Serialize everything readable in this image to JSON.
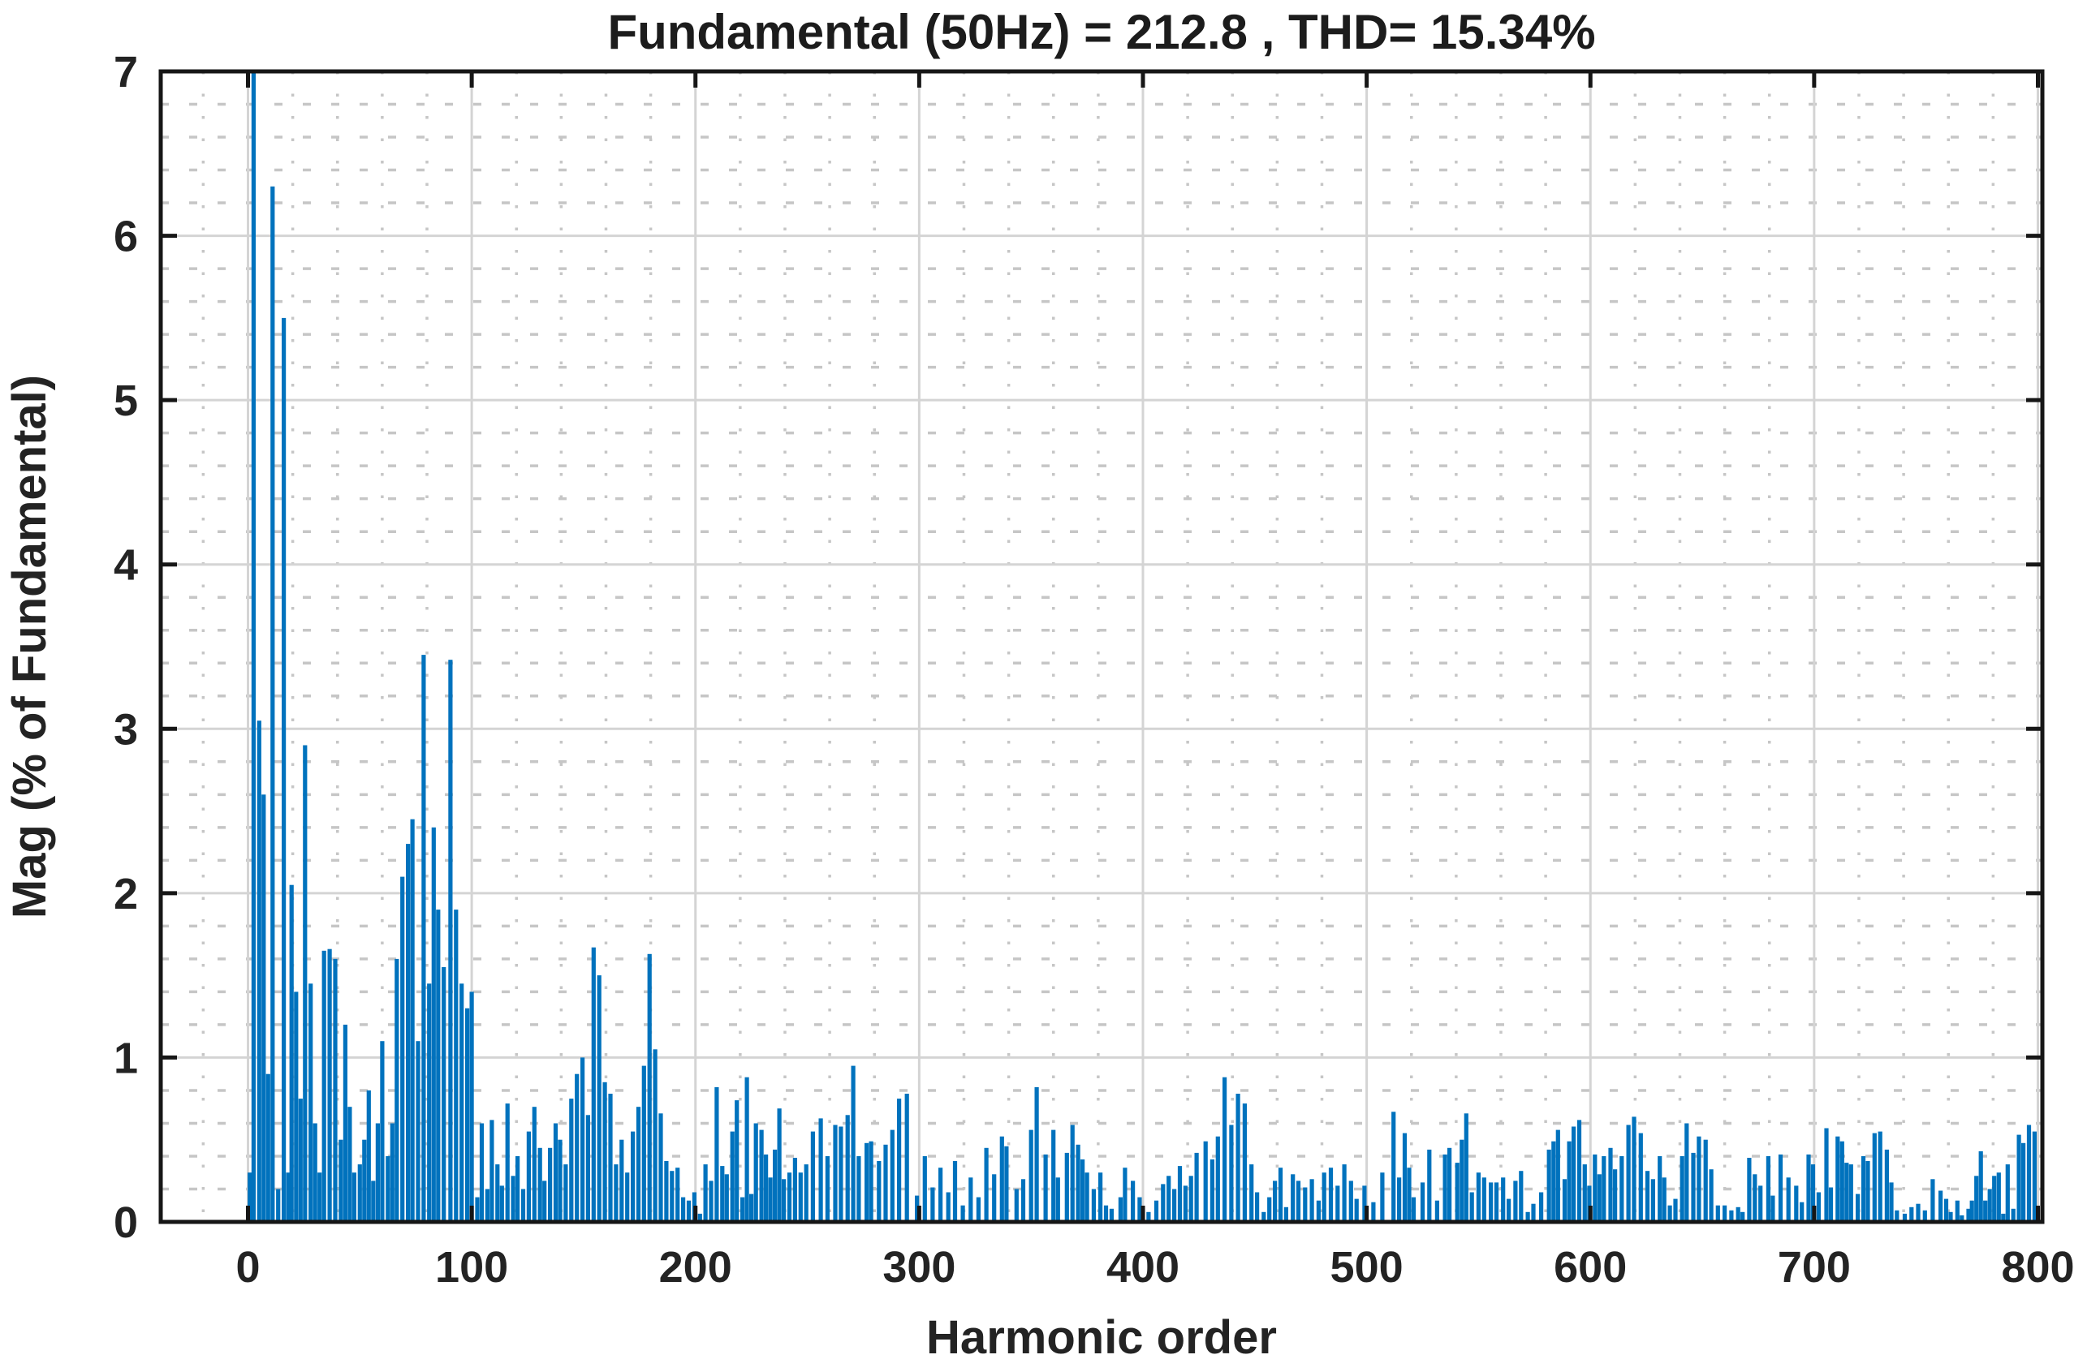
{
  "chart_data": {
    "type": "bar",
    "title": "Fundamental (50Hz) = 212.8 , THD= 15.34%",
    "xlabel": "Harmonic order",
    "ylabel": "Mag (% of Fundamental)",
    "fundamental_hz": 50,
    "fundamental_peak": 212.8,
    "thd_percent": 15.34,
    "xlim": [
      -39,
      802
    ],
    "ylim": [
      0,
      7
    ],
    "x_ticks": [
      0,
      100,
      200,
      300,
      400,
      500,
      600,
      700,
      800
    ],
    "y_ticks": [
      0,
      1,
      2,
      3,
      4,
      5,
      6,
      7
    ],
    "x_minor_step": 20,
    "y_minor_step": 0.2,
    "grid": "major-solid-plus-minor-dotted",
    "legend": "none",
    "bar_color": "#0072BD",
    "axis_color": "#161616",
    "major_grid_color": "#d4d4d4",
    "minor_grid_color": "#c6c6c6",
    "note": "fundamental-region bar clipped at ylim max 7",
    "bars": [
      [
        0.8,
        0.3
      ],
      [
        2.5,
        7
      ],
      [
        5,
        3.05
      ],
      [
        7,
        2.6
      ],
      [
        9,
        0.9
      ],
      [
        11,
        6.3
      ],
      [
        13.5,
        0.2
      ],
      [
        16,
        5.5
      ],
      [
        18,
        0.3
      ],
      [
        19.5,
        2.05
      ],
      [
        21.5,
        1.4
      ],
      [
        23.5,
        0.75
      ],
      [
        25.5,
        2.9
      ],
      [
        28,
        1.45
      ],
      [
        30,
        0.6
      ],
      [
        32,
        0.3
      ],
      [
        34,
        1.65
      ],
      [
        36.5,
        1.66
      ],
      [
        39,
        1.6
      ],
      [
        41.5,
        0.5
      ],
      [
        43.5,
        1.2
      ],
      [
        45.5,
        0.7
      ],
      [
        47.5,
        0.3
      ],
      [
        50,
        0.35
      ],
      [
        52,
        0.5
      ],
      [
        54,
        0.8
      ],
      [
        56,
        0.25
      ],
      [
        58,
        0.6
      ],
      [
        60,
        1.1
      ],
      [
        62.5,
        0.4
      ],
      [
        64.5,
        0.6
      ],
      [
        66.5,
        1.6
      ],
      [
        69,
        2.1
      ],
      [
        71.5,
        2.3
      ],
      [
        73.5,
        2.45
      ],
      [
        76,
        1.1
      ],
      [
        78.5,
        3.45
      ],
      [
        81,
        1.45
      ],
      [
        83,
        2.4
      ],
      [
        85,
        1.9
      ],
      [
        87.5,
        1.55
      ],
      [
        90.5,
        3.42
      ],
      [
        93,
        1.9
      ],
      [
        95.5,
        1.45
      ],
      [
        98,
        1.3
      ],
      [
        100,
        1.4
      ],
      [
        102.5,
        0.15
      ],
      [
        104.5,
        0.6
      ],
      [
        107,
        0.2
      ],
      [
        109,
        0.62
      ],
      [
        111.5,
        0.35
      ],
      [
        113.5,
        0.22
      ],
      [
        116,
        0.72
      ],
      [
        118.5,
        0.28
      ],
      [
        120.5,
        0.4
      ],
      [
        123,
        0.2
      ],
      [
        125.5,
        0.55
      ],
      [
        128,
        0.7
      ],
      [
        130.5,
        0.45
      ],
      [
        132.5,
        0.25
      ],
      [
        135,
        0.45
      ],
      [
        137.5,
        0.6
      ],
      [
        139.5,
        0.5
      ],
      [
        142,
        0.35
      ],
      [
        144.5,
        0.75
      ],
      [
        147,
        0.9
      ],
      [
        149.5,
        1.0
      ],
      [
        152,
        0.65
      ],
      [
        154.5,
        1.67
      ],
      [
        157,
        1.5
      ],
      [
        159.5,
        0.85
      ],
      [
        162,
        0.78
      ],
      [
        164.5,
        0.35
      ],
      [
        167,
        0.5
      ],
      [
        169.5,
        0.3
      ],
      [
        172,
        0.55
      ],
      [
        174.5,
        0.7
      ],
      [
        177,
        0.95
      ],
      [
        179.5,
        1.63
      ],
      [
        182,
        1.05
      ],
      [
        184.5,
        0.66
      ],
      [
        187,
        0.37
      ],
      [
        189.5,
        0.31
      ],
      [
        192,
        0.33
      ],
      [
        194.5,
        0.15
      ],
      [
        197,
        0.13
      ],
      [
        199.5,
        0.18
      ],
      [
        202,
        0.05
      ],
      [
        204.5,
        0.35
      ],
      [
        207,
        0.25
      ],
      [
        209.5,
        0.82
      ],
      [
        212,
        0.34
      ],
      [
        214,
        0.29
      ],
      [
        216.5,
        0.55
      ],
      [
        218.5,
        0.74
      ],
      [
        221,
        0.15
      ],
      [
        223,
        0.88
      ],
      [
        225,
        0.17
      ],
      [
        227,
        0.6
      ],
      [
        229.5,
        0.56
      ],
      [
        231.5,
        0.41
      ],
      [
        233.5,
        0.27
      ],
      [
        235.5,
        0.44
      ],
      [
        237.5,
        0.69
      ],
      [
        239.5,
        0.26
      ],
      [
        242,
        0.3
      ],
      [
        244.5,
        0.39
      ],
      [
        247,
        0.3
      ],
      [
        249.5,
        0.35
      ],
      [
        252.5,
        0.55
      ],
      [
        256,
        0.63
      ],
      [
        259,
        0.4
      ],
      [
        262.5,
        0.59
      ],
      [
        265,
        0.58
      ],
      [
        268,
        0.65
      ],
      [
        270.5,
        0.95
      ],
      [
        273,
        0.4
      ],
      [
        276.5,
        0.48
      ],
      [
        278.5,
        0.49
      ],
      [
        282,
        0.37
      ],
      [
        285,
        0.47
      ],
      [
        288,
        0.56
      ],
      [
        291,
        0.75
      ],
      [
        294.5,
        0.78
      ],
      [
        299,
        0.16
      ],
      [
        302.5,
        0.4
      ],
      [
        306,
        0.21
      ],
      [
        309.5,
        0.33
      ],
      [
        313,
        0.18
      ],
      [
        316,
        0.37
      ],
      [
        319.5,
        0.1
      ],
      [
        323,
        0.27
      ],
      [
        326.5,
        0.15
      ],
      [
        330,
        0.45
      ],
      [
        333.5,
        0.29
      ],
      [
        337,
        0.52
      ],
      [
        339,
        0.46
      ],
      [
        343.5,
        0.2
      ],
      [
        346.5,
        0.26
      ],
      [
        350,
        0.56
      ],
      [
        352.5,
        0.82
      ],
      [
        356.5,
        0.41
      ],
      [
        360,
        0.56
      ],
      [
        362,
        0.27
      ],
      [
        366,
        0.42
      ],
      [
        368.5,
        0.59
      ],
      [
        371,
        0.47
      ],
      [
        373,
        0.38
      ],
      [
        375,
        0.3
      ],
      [
        378,
        0.2
      ],
      [
        381,
        0.3
      ],
      [
        383.5,
        0.1
      ],
      [
        386,
        0.08
      ],
      [
        390,
        0.15
      ],
      [
        392,
        0.33
      ],
      [
        395.5,
        0.25
      ],
      [
        398.5,
        0.15
      ],
      [
        402.5,
        0.06
      ],
      [
        406,
        0.13
      ],
      [
        409,
        0.23
      ],
      [
        411.5,
        0.28
      ],
      [
        414,
        0.2
      ],
      [
        416.5,
        0.34
      ],
      [
        419,
        0.22
      ],
      [
        421.5,
        0.28
      ],
      [
        424,
        0.42
      ],
      [
        428,
        0.49
      ],
      [
        431,
        0.38
      ],
      [
        433.5,
        0.52
      ],
      [
        436.5,
        0.88
      ],
      [
        439.5,
        0.59
      ],
      [
        442.5,
        0.78
      ],
      [
        445.5,
        0.72
      ],
      [
        448.5,
        0.35
      ],
      [
        451,
        0.18
      ],
      [
        454,
        0.06
      ],
      [
        456.5,
        0.15
      ],
      [
        459,
        0.25
      ],
      [
        461.5,
        0.33
      ],
      [
        464,
        0.09
      ],
      [
        467,
        0.29
      ],
      [
        469.5,
        0.25
      ],
      [
        472.5,
        0.21
      ],
      [
        475.5,
        0.26
      ],
      [
        478.5,
        0.13
      ],
      [
        481,
        0.3
      ],
      [
        484,
        0.33
      ],
      [
        487,
        0.22
      ],
      [
        490,
        0.35
      ],
      [
        493,
        0.25
      ],
      [
        495.5,
        0.14
      ],
      [
        499,
        0.22
      ],
      [
        503,
        0.12
      ],
      [
        507,
        0.3
      ],
      [
        512,
        0.67
      ],
      [
        514.5,
        0.27
      ],
      [
        517,
        0.54
      ],
      [
        519,
        0.33
      ],
      [
        521,
        0.15
      ],
      [
        525,
        0.24
      ],
      [
        528,
        0.44
      ],
      [
        531.5,
        0.13
      ],
      [
        535,
        0.41
      ],
      [
        537,
        0.45
      ],
      [
        540.5,
        0.36
      ],
      [
        542.5,
        0.5
      ],
      [
        544.5,
        0.66
      ],
      [
        547,
        0.18
      ],
      [
        550,
        0.3
      ],
      [
        552.5,
        0.27
      ],
      [
        555.5,
        0.24
      ],
      [
        558,
        0.24
      ],
      [
        561,
        0.27
      ],
      [
        563.5,
        0.14
      ],
      [
        566.5,
        0.25
      ],
      [
        569,
        0.31
      ],
      [
        572,
        0.06
      ],
      [
        574.5,
        0.11
      ],
      [
        578,
        0.18
      ],
      [
        581.5,
        0.44
      ],
      [
        583.5,
        0.49
      ],
      [
        585.5,
        0.56
      ],
      [
        588.5,
        0.26
      ],
      [
        590.5,
        0.49
      ],
      [
        592.5,
        0.58
      ],
      [
        595,
        0.62
      ],
      [
        597.5,
        0.35
      ],
      [
        599.5,
        0.22
      ],
      [
        602,
        0.41
      ],
      [
        604,
        0.29
      ],
      [
        606,
        0.4
      ],
      [
        609,
        0.45
      ],
      [
        611,
        0.32
      ],
      [
        614,
        0.4
      ],
      [
        617,
        0.59
      ],
      [
        619.5,
        0.64
      ],
      [
        622.5,
        0.54
      ],
      [
        625.5,
        0.31
      ],
      [
        628,
        0.26
      ],
      [
        631,
        0.4
      ],
      [
        633,
        0.27
      ],
      [
        635.5,
        0.1
      ],
      [
        638,
        0.14
      ],
      [
        641,
        0.4
      ],
      [
        643,
        0.6
      ],
      [
        646,
        0.42
      ],
      [
        648.5,
        0.52
      ],
      [
        651.5,
        0.5
      ],
      [
        654,
        0.32
      ],
      [
        657,
        0.1
      ],
      [
        660,
        0.1
      ],
      [
        663,
        0.07
      ],
      [
        666,
        0.09
      ],
      [
        668,
        0.06
      ],
      [
        671,
        0.39
      ],
      [
        673.5,
        0.29
      ],
      [
        676,
        0.22
      ],
      [
        679.5,
        0.4
      ],
      [
        681.5,
        0.16
      ],
      [
        685,
        0.41
      ],
      [
        688.5,
        0.27
      ],
      [
        692,
        0.22
      ],
      [
        694.5,
        0.12
      ],
      [
        697.5,
        0.41
      ],
      [
        699.5,
        0.35
      ],
      [
        702,
        0.18
      ],
      [
        705.5,
        0.57
      ],
      [
        707.5,
        0.21
      ],
      [
        710.5,
        0.52
      ],
      [
        712.5,
        0.49
      ],
      [
        714.5,
        0.36
      ],
      [
        716.5,
        0.35
      ],
      [
        719.5,
        0.17
      ],
      [
        722,
        0.4
      ],
      [
        724,
        0.37
      ],
      [
        727,
        0.54
      ],
      [
        729.5,
        0.55
      ],
      [
        732.5,
        0.44
      ],
      [
        734.5,
        0.24
      ],
      [
        737,
        0.07
      ],
      [
        740.5,
        0.05
      ],
      [
        743.5,
        0.09
      ],
      [
        746.5,
        0.11
      ],
      [
        749.5,
        0.07
      ],
      [
        753,
        0.26
      ],
      [
        756.5,
        0.19
      ],
      [
        759,
        0.14
      ],
      [
        761,
        0.06
      ],
      [
        764,
        0.13
      ],
      [
        766,
        0.04
      ],
      [
        769,
        0.08
      ],
      [
        770.5,
        0.13
      ],
      [
        772.5,
        0.28
      ],
      [
        774.5,
        0.43
      ],
      [
        776.5,
        0.13
      ],
      [
        778.5,
        0.2
      ],
      [
        780.5,
        0.28
      ],
      [
        782.5,
        0.3
      ],
      [
        784.5,
        0.05
      ],
      [
        786.5,
        0.35
      ],
      [
        789,
        0.08
      ],
      [
        791.5,
        0.53
      ],
      [
        793.5,
        0.48
      ],
      [
        796,
        0.59
      ],
      [
        798.5,
        0.55
      ]
    ]
  }
}
